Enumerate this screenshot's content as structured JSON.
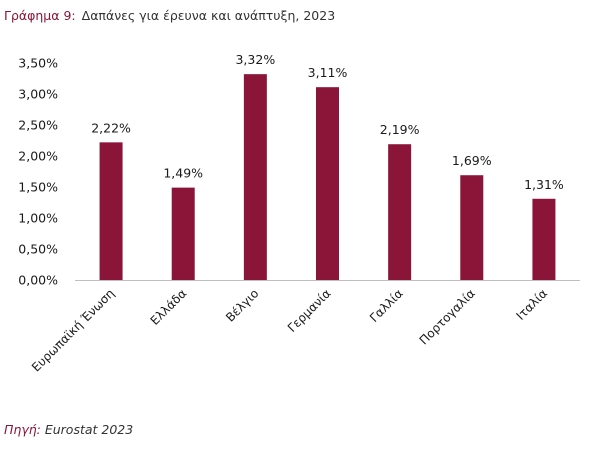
{
  "caption": {
    "label": "Γράφημα 9:",
    "text": "Δαπάνες για έρευνα και ανάπτυξη, 2023"
  },
  "source": {
    "label": "Πηγή:",
    "text": "Eurostat 2023"
  },
  "colors": {
    "bar": "#8b1538",
    "accent": "#8b1538",
    "axis": "#bfbfbf",
    "text": "#1a1a1a"
  },
  "chart_data": {
    "type": "bar",
    "title": "",
    "xlabel": "",
    "ylabel": "",
    "categories": [
      "Ευρωπαϊκή Ένωση",
      "Ελλάδα",
      "Βέλγιο",
      "Γερμανία",
      "Γαλλία",
      "Πορτογαλία",
      "Ιταλία"
    ],
    "values": [
      2.22,
      1.49,
      3.32,
      3.11,
      2.19,
      1.69,
      1.31
    ],
    "value_labels": [
      "2,22%",
      "1,49%",
      "3,32%",
      "3,11%",
      "2,19%",
      "1,69%",
      "1,31%"
    ],
    "ylim": [
      0,
      3.5
    ],
    "yticks": [
      0,
      0.5,
      1.0,
      1.5,
      2.0,
      2.5,
      3.0,
      3.5
    ],
    "ytick_labels": [
      "0,00%",
      "0,50%",
      "1,00%",
      "1,50%",
      "2,00%",
      "2,50%",
      "3,00%",
      "3,50%"
    ],
    "grid": false,
    "legend": "none"
  }
}
